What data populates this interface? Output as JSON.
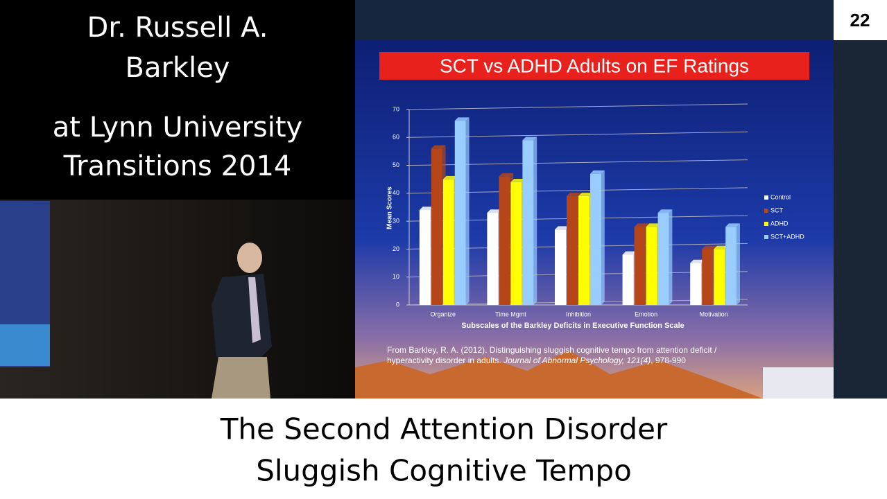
{
  "overlay": {
    "speaker_lines": [
      "Dr. Russell A.",
      "Barkley"
    ],
    "venue_lines": [
      "at Lynn University",
      "Transitions 2014"
    ],
    "slide_number": "22",
    "caption_lines": [
      "The Second Attention Disorder",
      "Sluggish Cognitive Tempo"
    ]
  },
  "chart_data": {
    "type": "bar",
    "title": "SCT vs ADHD Adults on EF Ratings",
    "y_label": "Mean Scores",
    "x_label": "Subscales of the Barkley Deficits in Executive Function Scale",
    "categories": [
      "Organize",
      "Time Mgmt",
      "Inhibition",
      "Emotion",
      "Motivation"
    ],
    "series": [
      {
        "name": "Control",
        "color": "#ffffff",
        "values": [
          34,
          33,
          27,
          18,
          15
        ]
      },
      {
        "name": "SCT",
        "color": "#b5461a",
        "values": [
          56,
          46,
          39,
          28,
          20
        ]
      },
      {
        "name": "ADHD",
        "color": "#ffff00",
        "values": [
          45,
          44,
          39,
          28,
          20
        ]
      },
      {
        "name": "SCT+ADHD",
        "color": "#99ccff",
        "values": [
          66,
          59,
          47,
          33,
          28
        ]
      }
    ],
    "ylim": [
      0,
      70
    ],
    "yticks": [
      0,
      10,
      20,
      30,
      40,
      50,
      60,
      70
    ],
    "grid": true,
    "legend": "right",
    "source": {
      "line1": "From Barkley, R. A. (2012).  Distinguishing sluggish cognitive tempo from attention deficit /",
      "line2": "hyperactivity disorder in adults.  ",
      "journal": "Journal of Abnormal Psychology, 121(4)",
      "pages": ", 978-990"
    }
  }
}
